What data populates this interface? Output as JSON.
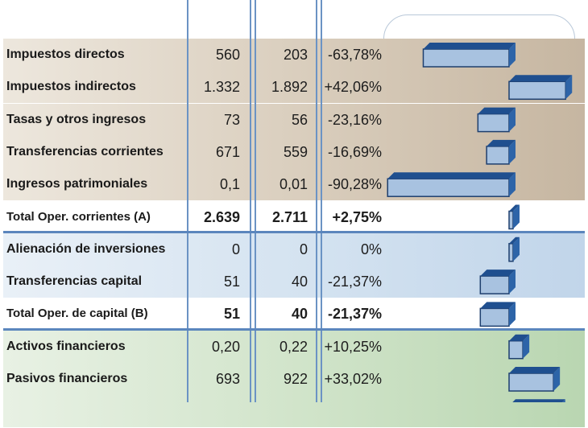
{
  "chart_data": {
    "type": "bar",
    "orientation": "horizontal",
    "columns": [],
    "rows": [
      {
        "label": "Impuestos directos",
        "v1": "560",
        "v2": "203",
        "pct": "-63,78%",
        "value": -63.78,
        "group": "corrientes",
        "total": false
      },
      {
        "label": "Impuestos indirectos",
        "v1": "1.332",
        "v2": "1.892",
        "pct": "+42,06%",
        "value": 42.06,
        "group": "corrientes",
        "total": false
      },
      {
        "label": "Tasas y otros ingresos",
        "v1": "73",
        "v2": "56",
        "pct": "-23,16%",
        "value": -23.16,
        "group": "corrientes",
        "total": false
      },
      {
        "label": "Transferencias corrientes",
        "v1": "671",
        "v2": "559",
        "pct": "-16,69%",
        "value": -16.69,
        "group": "corrientes",
        "total": false
      },
      {
        "label": "Ingresos patrimoniales",
        "v1": "0,1",
        "v2": "0,01",
        "pct": "-90,28%",
        "value": -90.28,
        "group": "corrientes",
        "total": false
      },
      {
        "label": "Total Oper. corrientes (A)",
        "v1": "2.639",
        "v2": "2.711",
        "pct": "+2,75%",
        "value": 2.75,
        "group": "corrientes",
        "total": true
      },
      {
        "label": "Alienación de inversiones",
        "v1": "0",
        "v2": "0",
        "pct": "0%",
        "value": 0,
        "group": "capital",
        "total": false
      },
      {
        "label": "Transferencias capital",
        "v1": "51",
        "v2": "40",
        "pct": "-21,37%",
        "value": -21.37,
        "group": "capital",
        "total": false
      },
      {
        "label": "Total Oper. de capital (B)",
        "v1": "51",
        "v2": "40",
        "pct": "-21,37%",
        "value": -21.37,
        "group": "capital",
        "total": true
      },
      {
        "label": "Activos financieros",
        "v1": "0,20",
        "v2": "0,22",
        "pct": "+10,25%",
        "value": 10.25,
        "group": "financieras",
        "total": false
      },
      {
        "label": "Pasivos financieros",
        "v1": "693",
        "v2": "922",
        "pct": "+33,02%",
        "value": 33.02,
        "group": "financieras",
        "total": false
      },
      {
        "label": "",
        "v1": "",
        "v2": "",
        "pct": "",
        "value": 37,
        "group": "financieras",
        "total": false
      }
    ],
    "xlim": [
      -100,
      50
    ],
    "colors": {
      "bar_face": "#a8c2e0",
      "bar_top": "#1f4f8f",
      "bar_side": "#2d64a8",
      "bar_border": "#1e3f6e",
      "grid": "#5b86bd"
    }
  }
}
